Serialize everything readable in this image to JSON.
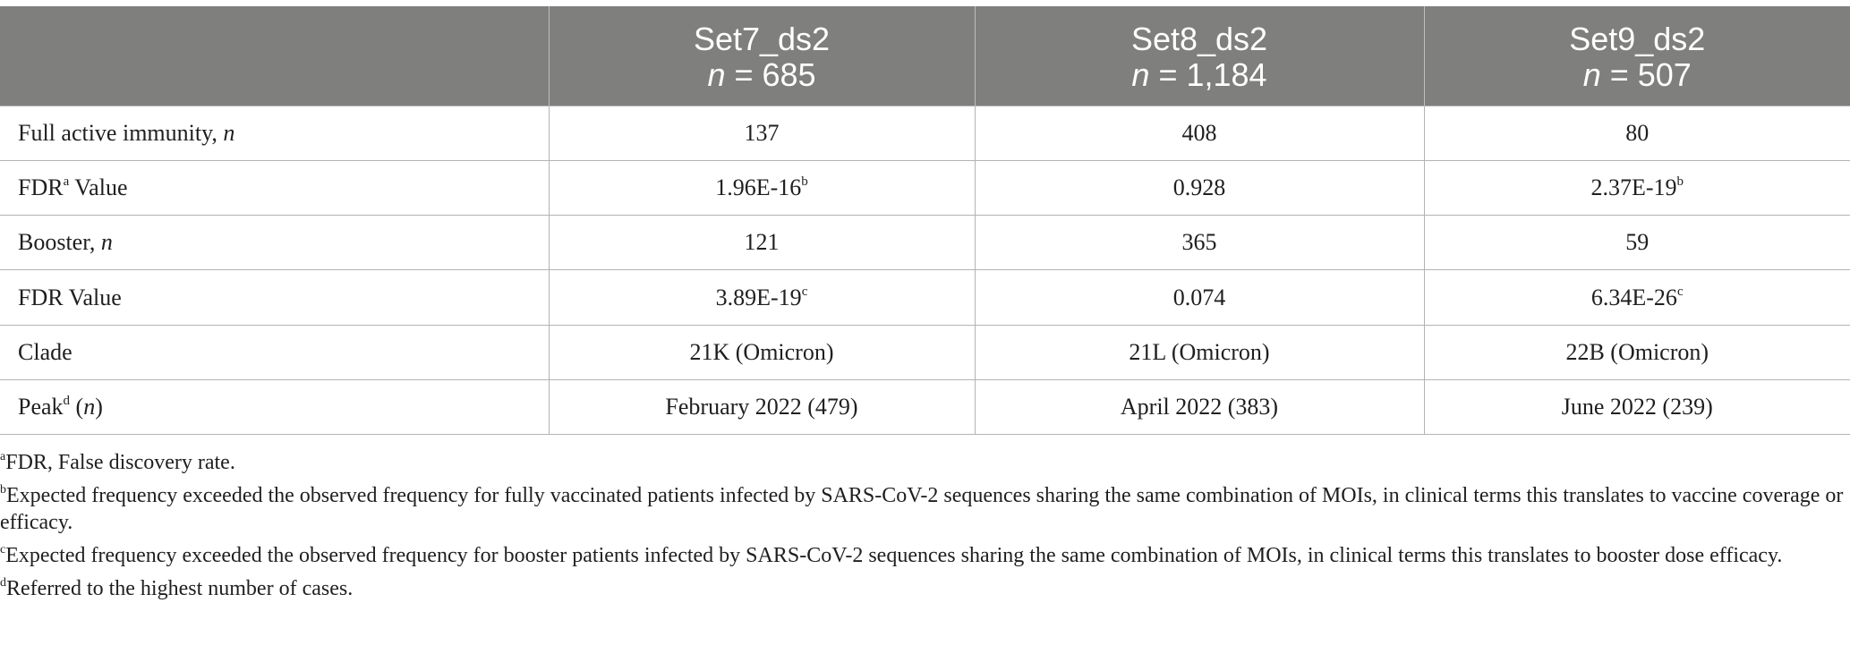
{
  "table": {
    "columns": [
      {
        "name": "Set7_ds2",
        "n_prefix": "n",
        "n_value": " = 685"
      },
      {
        "name": "Set8_ds2",
        "n_prefix": "n",
        "n_value": " = 1,184"
      },
      {
        "name": "Set9_ds2",
        "n_prefix": "n",
        "n_value": " = 507"
      }
    ],
    "rows": {
      "full_active": {
        "label": "Full active immunity, ",
        "label_italic": "n",
        "values": [
          "137",
          "408",
          "80"
        ]
      },
      "fdr_a": {
        "label": "FDR",
        "label_sup": "a",
        "label_after": " Value",
        "values": [
          "1.96E-16",
          "0.928",
          "2.37E-19"
        ],
        "value_sups": [
          "b",
          "",
          "b"
        ]
      },
      "booster": {
        "label": "Booster, ",
        "label_italic": "n",
        "values": [
          "121",
          "365",
          "59"
        ]
      },
      "fdr": {
        "label": "FDR Value",
        "values": [
          "3.89E-19",
          "0.074",
          "6.34E-26"
        ],
        "value_sups": [
          "c",
          "",
          "c"
        ]
      },
      "clade": {
        "label": "Clade",
        "values": [
          "21K (Omicron)",
          "21L (Omicron)",
          "22B (Omicron)"
        ]
      },
      "peak": {
        "label": "Peak",
        "label_sup": "d",
        "label_after": " (",
        "label_italic": "n",
        "label_close": ")",
        "values": [
          "February 2022 (479)",
          "April 2022 (383)",
          "June 2022 (239)"
        ]
      }
    }
  },
  "footnotes": [
    {
      "mark": "a",
      "text": "FDR, False discovery rate."
    },
    {
      "mark": "b",
      "text": "Expected frequency exceeded the observed frequency for fully vaccinated patients infected by SARS-CoV-2 sequences sharing the same combination of MOIs, in clinical terms this translates to vaccine coverage or efficacy."
    },
    {
      "mark": "c",
      "text": "Expected frequency exceeded the observed frequency for booster patients infected by SARS-CoV-2 sequences sharing the same combination of MOIs, in clinical terms this translates to booster dose efficacy."
    },
    {
      "mark": "d",
      "text": "Referred to the highest number of cases."
    }
  ],
  "colors": {
    "header_bg": "#7f7f7e",
    "header_text": "#ffffff",
    "grid_line": "#b3b3b3",
    "body_text": "#1f1f1f"
  }
}
